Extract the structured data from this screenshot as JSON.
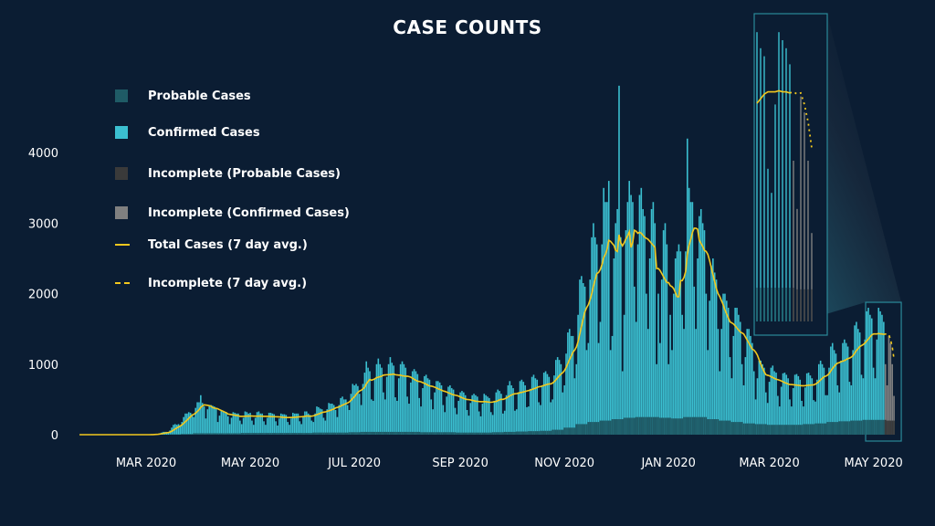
{
  "chart_data": {
    "type": "bar",
    "title": "CASE COUNTS",
    "xlabel": "",
    "ylabel": "",
    "ylim": [
      0,
      4500
    ],
    "x_range": [
      "2020-01-22",
      "2021-05-20"
    ],
    "yticks": [
      "0",
      "1000",
      "2000",
      "3000",
      "4000"
    ],
    "xticks": [
      {
        "label": "MAR 2020",
        "date": "2020-03-01"
      },
      {
        "label": "MAY 2020",
        "date": "2020-05-01"
      },
      {
        "label": "JUL 2020",
        "date": "2020-07-01"
      },
      {
        "label": "SEP 2020",
        "date": "2020-09-01"
      },
      {
        "label": "NOV 2020",
        "date": "2020-11-01"
      },
      {
        "label": "JAN 2020",
        "date": "2021-01-01"
      },
      {
        "label": "MAR 2020",
        "date": "2021-03-01"
      },
      {
        "label": "MAY 2020",
        "date": "2021-05-01"
      }
    ],
    "grid": false,
    "legend_position": "top-left",
    "legend": [
      {
        "label": "Probable Cases",
        "kind": "box",
        "color": "#1f5b66"
      },
      {
        "label": "Confirmed Cases",
        "kind": "box",
        "color": "#3bbfd0"
      },
      {
        "label": "Incomplete (Probable Cases)",
        "kind": "box",
        "color": "#3a3a3a"
      },
      {
        "label": "Incomplete (Confirmed Cases)",
        "kind": "box",
        "color": "#808080"
      },
      {
        "label": "Total Cases (7 day avg.)",
        "kind": "line",
        "color": "#f2c81e"
      },
      {
        "label": "Incomplete (7 day avg.)",
        "kind": "dash",
        "color": "#f2c81e"
      }
    ],
    "daily_start": "2020-03-01",
    "incomplete_from": "2021-05-08",
    "inset_from": "2021-04-28",
    "daily_total_cases": [
      0,
      0,
      0,
      5,
      5,
      10,
      10,
      10,
      20,
      30,
      40,
      40,
      40,
      30,
      60,
      100,
      140,
      150,
      140,
      150,
      120,
      180,
      250,
      300,
      300,
      320,
      310,
      290,
      250,
      380,
      460,
      460,
      560,
      450,
      400,
      230,
      360,
      420,
      420,
      410,
      400,
      380,
      180,
      270,
      350,
      340,
      330,
      320,
      260,
      150,
      240,
      320,
      310,
      300,
      300,
      200,
      150,
      240,
      330,
      320,
      300,
      310,
      200,
      140,
      240,
      320,
      330,
      300,
      300,
      190,
      140,
      240,
      310,
      310,
      300,
      290,
      190,
      130,
      230,
      300,
      290,
      290,
      280,
      180,
      140,
      230,
      310,
      300,
      300,
      300,
      190,
      150,
      250,
      330,
      330,
      300,
      280,
      200,
      180,
      300,
      400,
      390,
      370,
      360,
      240,
      200,
      360,
      450,
      440,
      440,
      420,
      350,
      250,
      420,
      520,
      540,
      500,
      500,
      420,
      350,
      580,
      720,
      700,
      720,
      690,
      580,
      420,
      720,
      880,
      1040,
      950,
      900,
      500,
      480,
      800,
      1000,
      1080,
      1000,
      950,
      600,
      500,
      820,
      1000,
      1100,
      1020,
      980,
      530,
      480,
      800,
      1000,
      1040,
      1000,
      950,
      540,
      440,
      740,
      900,
      930,
      900,
      860,
      520,
      400,
      660,
      830,
      850,
      800,
      780,
      500,
      360,
      600,
      760,
      760,
      740,
      700,
      420,
      320,
      540,
      680,
      700,
      660,
      640,
      380,
      290,
      480,
      600,
      620,
      600,
      560,
      350,
      270,
      450,
      560,
      580,
      560,
      540,
      330,
      260,
      440,
      580,
      560,
      540,
      520,
      320,
      280,
      480,
      600,
      640,
      620,
      580,
      300,
      340,
      560,
      700,
      760,
      700,
      660,
      340,
      360,
      600,
      760,
      780,
      750,
      700,
      390,
      400,
      650,
      820,
      850,
      800,
      780,
      460,
      420,
      700,
      880,
      900,
      860,
      820,
      460,
      500,
      840,
      1060,
      1100,
      1060,
      1000,
      600,
      700,
      1150,
      1450,
      1500,
      1400,
      1400,
      800,
      1000,
      1700,
      2200,
      2250,
      2150,
      2100,
      1200,
      1300,
      2200,
      2800,
      3000,
      2800,
      2700,
      1300,
      1600,
      2700,
      3500,
      3300,
      3300,
      3600,
      1200,
      1400,
      2500,
      3000,
      3200,
      4950,
      2800,
      900,
      1700,
      2900,
      3300,
      3600,
      3400,
      3300,
      2100,
      1600,
      2700,
      3400,
      3500,
      3200,
      3100,
      2000,
      1500,
      2500,
      3200,
      3300,
      3000,
      1000,
      2000,
      1300,
      2200,
      2900,
      3000,
      2700,
      1000,
      1700,
      1200,
      2000,
      2500,
      2600,
      2700,
      2600,
      1700,
      1500,
      2600,
      4200,
      3500,
      3300,
      3300,
      2100,
      1500,
      2500,
      3100,
      3200,
      3000,
      2900,
      2000,
      1200,
      1900,
      2400,
      2500,
      2300,
      2200,
      1500,
      900,
      1500,
      2000,
      2000,
      1900,
      1800,
      1100,
      800,
      1400,
      1800,
      1800,
      1700,
      1600,
      1000,
      700,
      1100,
      1500,
      1500,
      1400,
      1300,
      900,
      500,
      800,
      1050,
      1050,
      1000,
      950,
      600,
      450,
      750,
      950,
      980,
      900,
      880,
      550,
      400,
      680,
      870,
      880,
      850,
      800,
      500,
      400,
      660,
      850,
      860,
      830,
      780,
      480,
      400,
      670,
      870,
      880,
      840,
      800,
      490,
      470,
      780,
      1000,
      1050,
      1000,
      950,
      560,
      560,
      950,
      1250,
      1300,
      1200,
      1150,
      700,
      600,
      1050,
      1300,
      1350,
      1300,
      1250,
      750,
      700,
      1200,
      1550,
      1600,
      1500,
      1450,
      850,
      800,
      1350,
      1750,
      1800,
      1700,
      1650,
      950,
      800,
      1350,
      1800,
      1750,
      1700,
      1600,
      1000,
      700,
      1400,
      1300,
      1000,
      550
    ],
    "weekly_probable_cases": [
      0,
      0,
      5,
      10,
      20,
      20,
      20,
      20,
      25,
      25,
      25,
      25,
      25,
      25,
      30,
      30,
      30,
      35,
      40,
      40,
      40,
      40,
      40,
      35,
      35,
      35,
      30,
      30,
      30,
      35,
      40,
      45,
      50,
      55,
      70,
      100,
      150,
      180,
      200,
      220,
      240,
      250,
      250,
      240,
      230,
      250,
      250,
      220,
      200,
      180,
      160,
      150,
      140,
      140,
      140,
      150,
      160,
      180,
      190,
      200,
      210,
      210,
      200
    ]
  }
}
